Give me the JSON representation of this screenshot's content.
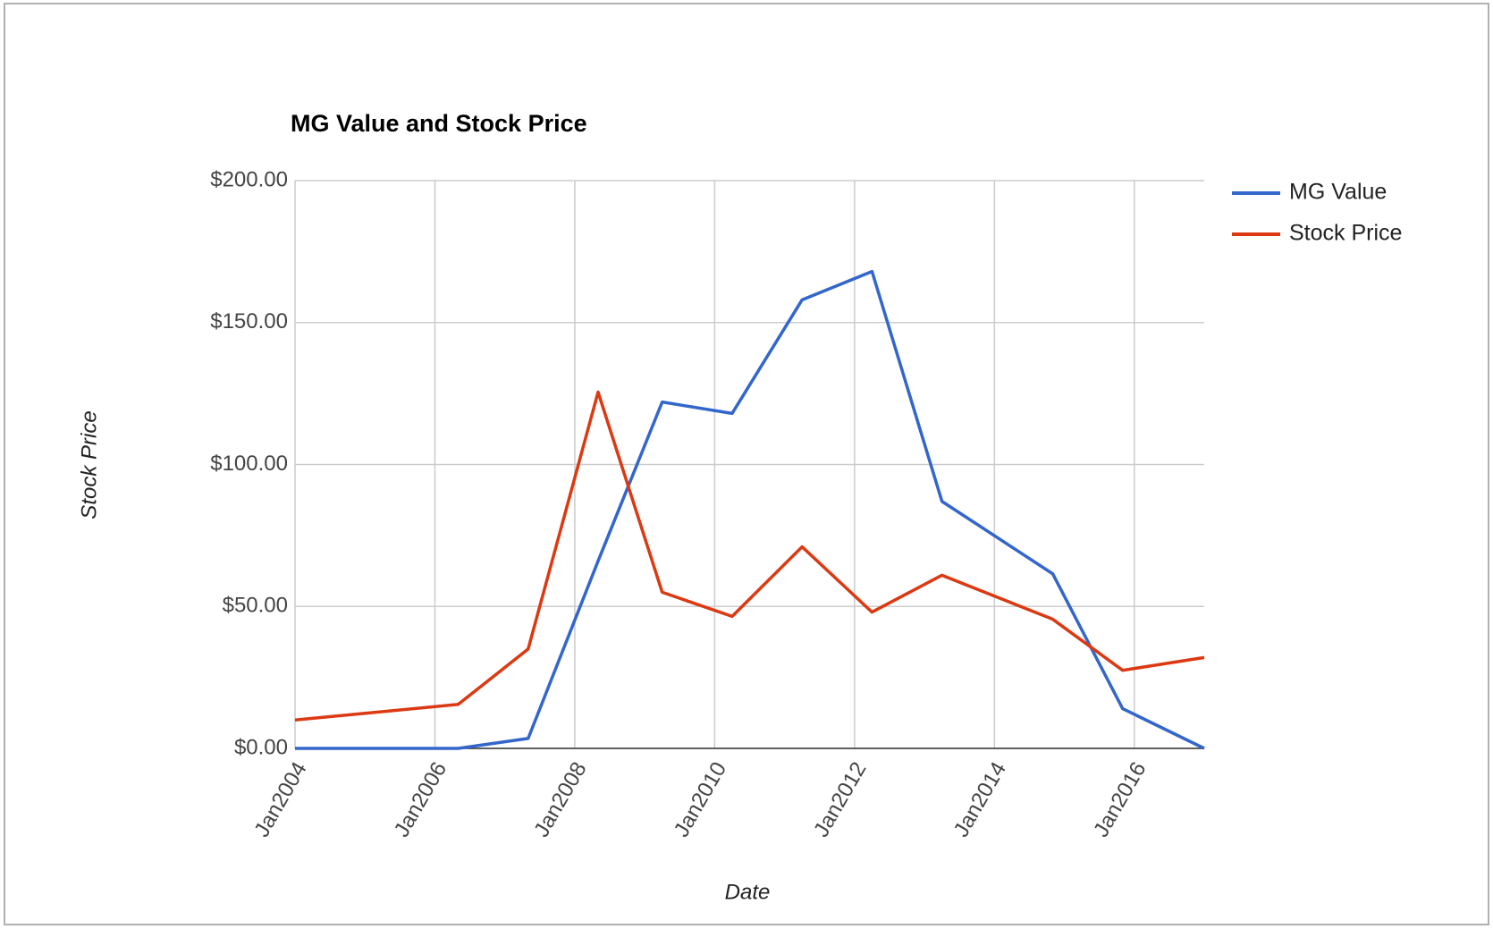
{
  "chart_data": {
    "type": "line",
    "title": "MG Value and Stock Price",
    "x_label": "Date",
    "y_label": "Stock Price",
    "x": [
      "2004-01",
      "2006-05",
      "2007-05",
      "2008-05",
      "2009-04",
      "2010-04",
      "2011-04",
      "2012-04",
      "2013-04",
      "2014-11",
      "2015-11",
      "2017-01"
    ],
    "series": [
      {
        "name": "MG Value",
        "color": "#3366cc",
        "values": [
          0,
          0,
          3.5,
          66,
          122,
          118,
          158,
          168,
          87,
          61.5,
          14,
          0
        ]
      },
      {
        "name": "Stock Price",
        "color": "#dc3912",
        "values": [
          10,
          15.5,
          35,
          125.5,
          55,
          46.5,
          71,
          48,
          61,
          45.5,
          27.5,
          32
        ]
      }
    ],
    "xlim": [
      "2004-01",
      "2017-01"
    ],
    "xticks": [
      {
        "value": "2004-01",
        "label": "Jan2004"
      },
      {
        "value": "2006-01",
        "label": "Jan2006"
      },
      {
        "value": "2008-01",
        "label": "Jan2008"
      },
      {
        "value": "2010-01",
        "label": "Jan2010"
      },
      {
        "value": "2012-01",
        "label": "Jan2012"
      },
      {
        "value": "2014-01",
        "label": "Jan2014"
      },
      {
        "value": "2016-01",
        "label": "Jan2016"
      }
    ],
    "ylim": [
      0,
      200
    ],
    "yticks": [
      {
        "value": 0,
        "label": "$0.00"
      },
      {
        "value": 50,
        "label": "$50.00"
      },
      {
        "value": 100,
        "label": "$100.00"
      },
      {
        "value": 150,
        "label": "$150.00"
      },
      {
        "value": 200,
        "label": "$200.00"
      }
    ],
    "grid": true,
    "legend": "right"
  }
}
